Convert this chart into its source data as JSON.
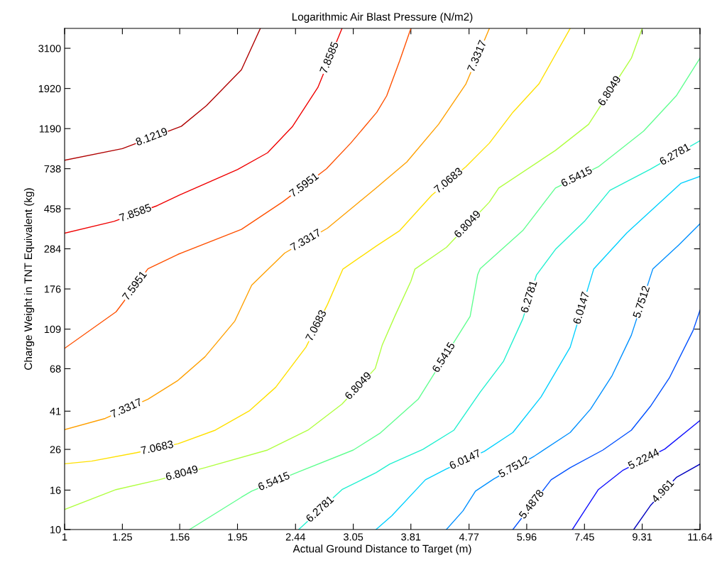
{
  "chart_data": {
    "type": "line",
    "title": "Logarithmic Air Blast Pressure (N/m2)",
    "xlabel": "Actual Ground Distance to Target (m)",
    "ylabel": "Charge Weight in TNT Equivalent (kg)",
    "log": "xy",
    "grid": false,
    "legend": false,
    "marker": "none",
    "line_style": "solid",
    "xlim": [
      1,
      11.64
    ],
    "ylim": [
      10,
      3930
    ],
    "xticks": [
      1,
      1.25,
      1.56,
      1.95,
      2.44,
      3.05,
      3.81,
      4.77,
      5.96,
      7.45,
      9.31,
      11.64
    ],
    "yticks": [
      10,
      16,
      26,
      41,
      68,
      109,
      176,
      284,
      458,
      738,
      1190,
      1920,
      3100
    ],
    "series": [
      {
        "name": "8.1219",
        "color": "#b00000",
        "x": [
          1,
          1.25,
          1.57,
          1.73,
          1.98,
          2.13
        ],
        "values": [
          816,
          938,
          1224,
          1565,
          2400,
          3930
        ]
      },
      {
        "name": "7.8585",
        "color": "#f00000",
        "x": [
          1,
          1.21,
          1.43,
          1.56,
          1.95,
          2.19,
          2.41,
          2.66,
          2.92
        ],
        "values": [
          342,
          394,
          475,
          540,
          730,
          892,
          1217,
          1944,
          3930
        ]
      },
      {
        "name": "7.5951",
        "color": "#ff5000",
        "x": [
          1,
          1.22,
          1.25,
          1.38,
          1.55,
          1.98,
          2.32,
          2.75,
          3.02,
          3.34,
          3.47,
          3.65,
          3.81
        ],
        "values": [
          86.7,
          134,
          148,
          224,
          266,
          358,
          496,
          737,
          1001,
          1446,
          1759,
          2678,
          3930
        ]
      },
      {
        "name": "7.3317",
        "color": "#ffa000",
        "x": [
          1,
          1.17,
          1.38,
          1.55,
          1.72,
          1.93,
          2.06,
          2.34,
          2.76,
          3.08,
          3.33,
          3.75,
          4.24,
          4.71,
          5.16
        ],
        "values": [
          32.9,
          37.6,
          47.3,
          59.2,
          78.4,
          120,
          184,
          270,
          363,
          480,
          586,
          799,
          1253,
          2020,
          3930
        ]
      },
      {
        "name": "7.0683",
        "color": "#ffe000",
        "x": [
          1,
          1.11,
          1.32,
          1.55,
          1.79,
          2.04,
          2.26,
          2.54,
          2.76,
          2.93,
          3.33,
          3.65,
          4.13,
          4.71,
          5.16,
          5.65,
          6.25,
          7.05
        ],
        "values": [
          21.9,
          22.6,
          25.0,
          27.8,
          32.7,
          41.1,
          54.5,
          87.9,
          146,
          223,
          293,
          353,
          538,
          755,
          1001,
          1446,
          2030,
          3930
        ]
      },
      {
        "name": "6.8049",
        "color": "#b0ff40",
        "x": [
          1,
          1.22,
          1.44,
          1.72,
          2.19,
          2.56,
          2.92,
          3.32,
          3.41,
          3.58,
          3.81,
          3.87,
          4.37,
          5.16,
          5.35,
          6.66,
          7.57,
          8.93,
          9.31
        ],
        "values": [
          12.7,
          16.1,
          18.1,
          20.9,
          25.8,
          32.7,
          44.6,
          68.2,
          90.0,
          127,
          193,
          223,
          289,
          496,
          586,
          918,
          1253,
          2756,
          3930
        ]
      },
      {
        "name": "6.5415",
        "color": "#60ff90",
        "x": [
          1.62,
          1.98,
          2.06,
          2.45,
          3.05,
          3.38,
          3.92,
          4.79,
          4.93,
          4.98,
          5.87,
          6.66,
          7.86,
          9.36,
          10.62,
          11.64
        ],
        "values": [
          10,
          14.7,
          15.8,
          19.7,
          25.8,
          31.5,
          47.3,
          127,
          208,
          224,
          353,
          586,
          755,
          1155,
          1759,
          2756
        ]
      },
      {
        "name": "6.2781",
        "color": "#20f0d0",
        "x": [
          2.47,
          2.92,
          3.33,
          3.51,
          3.99,
          4.5,
          4.98,
          5.45,
          5.87,
          6.19,
          6.66,
          7.45,
          8.22,
          9.61,
          11.64
        ],
        "values": [
          10,
          16.1,
          19.7,
          21.8,
          26.0,
          32.7,
          51.5,
          74.4,
          123,
          208,
          282,
          394,
          570,
          734,
          1030
        ]
      },
      {
        "name": "6.0147",
        "color": "#00d0ff",
        "x": [
          3.33,
          3.54,
          4.03,
          4.37,
          5.06,
          5.65,
          6.3,
          7.05,
          7.72,
          8.77,
          10.82,
          11.64
        ],
        "values": [
          10,
          11.8,
          18.1,
          20.6,
          25.4,
          31.8,
          48.6,
          87.9,
          223,
          343,
          621,
          673
        ]
      },
      {
        "name": "5.7512",
        "color": "#0090ff",
        "x": [
          4.37,
          4.66,
          4.89,
          5.25,
          6.14,
          7.05,
          7.63,
          8.29,
          8.93,
          9.7,
          10.72,
          11.64
        ],
        "values": [
          10,
          12.5,
          15.8,
          18.3,
          24.0,
          31.8,
          42.1,
          62.7,
          101.5,
          223,
          297,
          383
        ]
      },
      {
        "name": "5.4878",
        "color": "#0050ff",
        "x": [
          5.65,
          6.55,
          7.05,
          8.0,
          8.93,
          9.61,
          10.34,
          11.33,
          11.64
        ],
        "values": [
          10,
          18.1,
          20.9,
          25.8,
          32.7,
          43.4,
          60.9,
          107,
          136.5
        ]
      },
      {
        "name": "5.2244",
        "color": "#1010ff",
        "x": [
          7.11,
          7.45,
          7.86,
          8.65,
          10.16,
          11.64
        ],
        "values": [
          10,
          12.5,
          16.1,
          20.3,
          26.1,
          36.7
        ]
      },
      {
        "name": "4.961",
        "color": "#0000c0",
        "x": [
          9.01,
          9.61,
          10.62,
          11.64
        ],
        "values": [
          10,
          13.3,
          18.6,
          21.8
        ]
      }
    ]
  }
}
